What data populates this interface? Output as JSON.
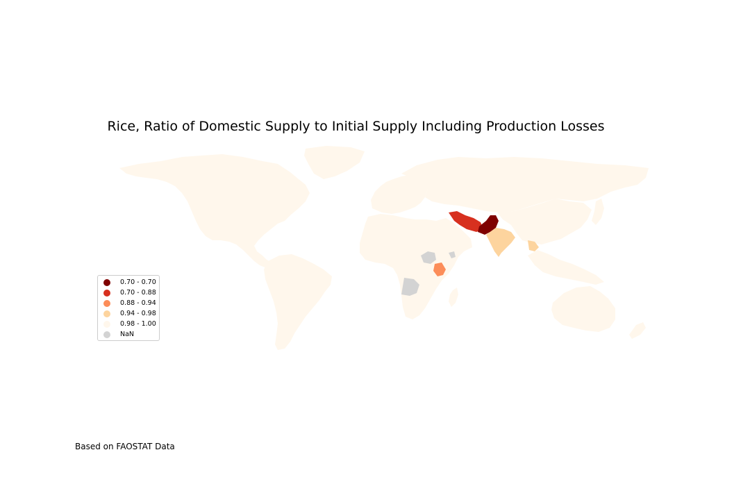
{
  "title": "Rice, Ratio of Domestic Supply to Initial Supply Including Production Losses",
  "credit": "Based on FAOSTAT Data",
  "legend": {
    "items": [
      {
        "label": "0.70 - 0.70",
        "color": "#7f0000"
      },
      {
        "label": "0.70 - 0.88",
        "color": "#d7301f"
      },
      {
        "label": "0.88 - 0.94",
        "color": "#fc8d59"
      },
      {
        "label": "0.94 - 0.98",
        "color": "#fdd49e"
      },
      {
        "label": "0.98 - 1.00",
        "color": "#fff7ec"
      },
      {
        "label": "NaN",
        "color": "#d3d3d3"
      }
    ]
  },
  "regions": {
    "north-america": {
      "class": "0.98 - 1.00"
    },
    "greenland": {
      "class": "0.98 - 1.00"
    },
    "south-america": {
      "class": "0.98 - 1.00"
    },
    "europe": {
      "class": "0.98 - 1.00"
    },
    "russia": {
      "class": "0.98 - 1.00"
    },
    "africa": {
      "class": "0.98 - 1.00"
    },
    "madagascar": {
      "class": "0.98 - 1.00"
    },
    "china": {
      "class": "0.98 - 1.00"
    },
    "southeast-asia": {
      "class": "0.98 - 1.00"
    },
    "australia": {
      "class": "0.98 - 1.00"
    },
    "japan": {
      "class": "0.98 - 1.00"
    },
    "new-zealand": {
      "class": "0.98 - 1.00"
    },
    "pakistan": {
      "class": "0.70 - 0.70"
    },
    "iran": {
      "class": "0.70 - 0.88"
    },
    "kenya": {
      "class": "0.88 - 0.94"
    },
    "india": {
      "class": "0.94 - 0.98"
    },
    "myanmar": {
      "class": "0.94 - 0.98"
    },
    "south-sudan": {
      "class": "NaN"
    },
    "angola": {
      "class": "NaN"
    },
    "somalia": {
      "class": "NaN"
    }
  }
}
